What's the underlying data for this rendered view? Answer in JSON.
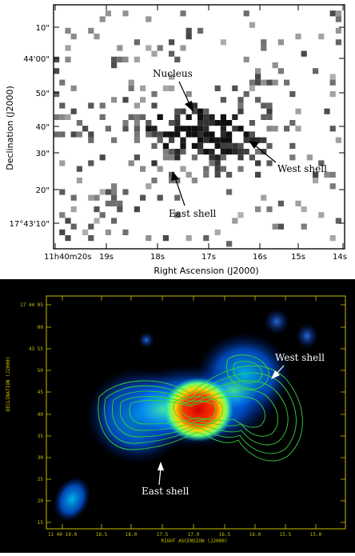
{
  "top_panel": {
    "xlabel": "Right Ascension (J2000)",
    "ylabel": "Declination (J2000)",
    "x_ticks": [
      "11h40m20s",
      "19s",
      "18s",
      "17s",
      "16s",
      "15s",
      "14s"
    ],
    "y_ticks": [
      "10\"",
      "44'00\"",
      "50\"",
      "40\"",
      "30\"",
      "20\"",
      "17°43'10\""
    ],
    "annotations": {
      "nucleus": "Nucleus",
      "west": "West shell",
      "east": "East shell"
    }
  },
  "bottom_panel": {
    "xlabel": "RIGHT ASCENSION (J2000)",
    "ylabel": "DECLINATION (J2000)",
    "x_ticks": [
      "11 40 19.0",
      "18.5",
      "18.0",
      "17.5",
      "17.0",
      "16.5",
      "16.0",
      "15.5",
      "15.0"
    ],
    "y_ticks": [
      "17 44 05",
      "00",
      "43 55",
      "50",
      "45",
      "40",
      "35",
      "30",
      "25",
      "20",
      "15"
    ],
    "annotations": {
      "west": "West shell",
      "east": "East shell"
    },
    "colors": {
      "background": "#000000",
      "frame": "#c8c000",
      "contours": "#39d339",
      "core": "#ff2a00"
    }
  }
}
